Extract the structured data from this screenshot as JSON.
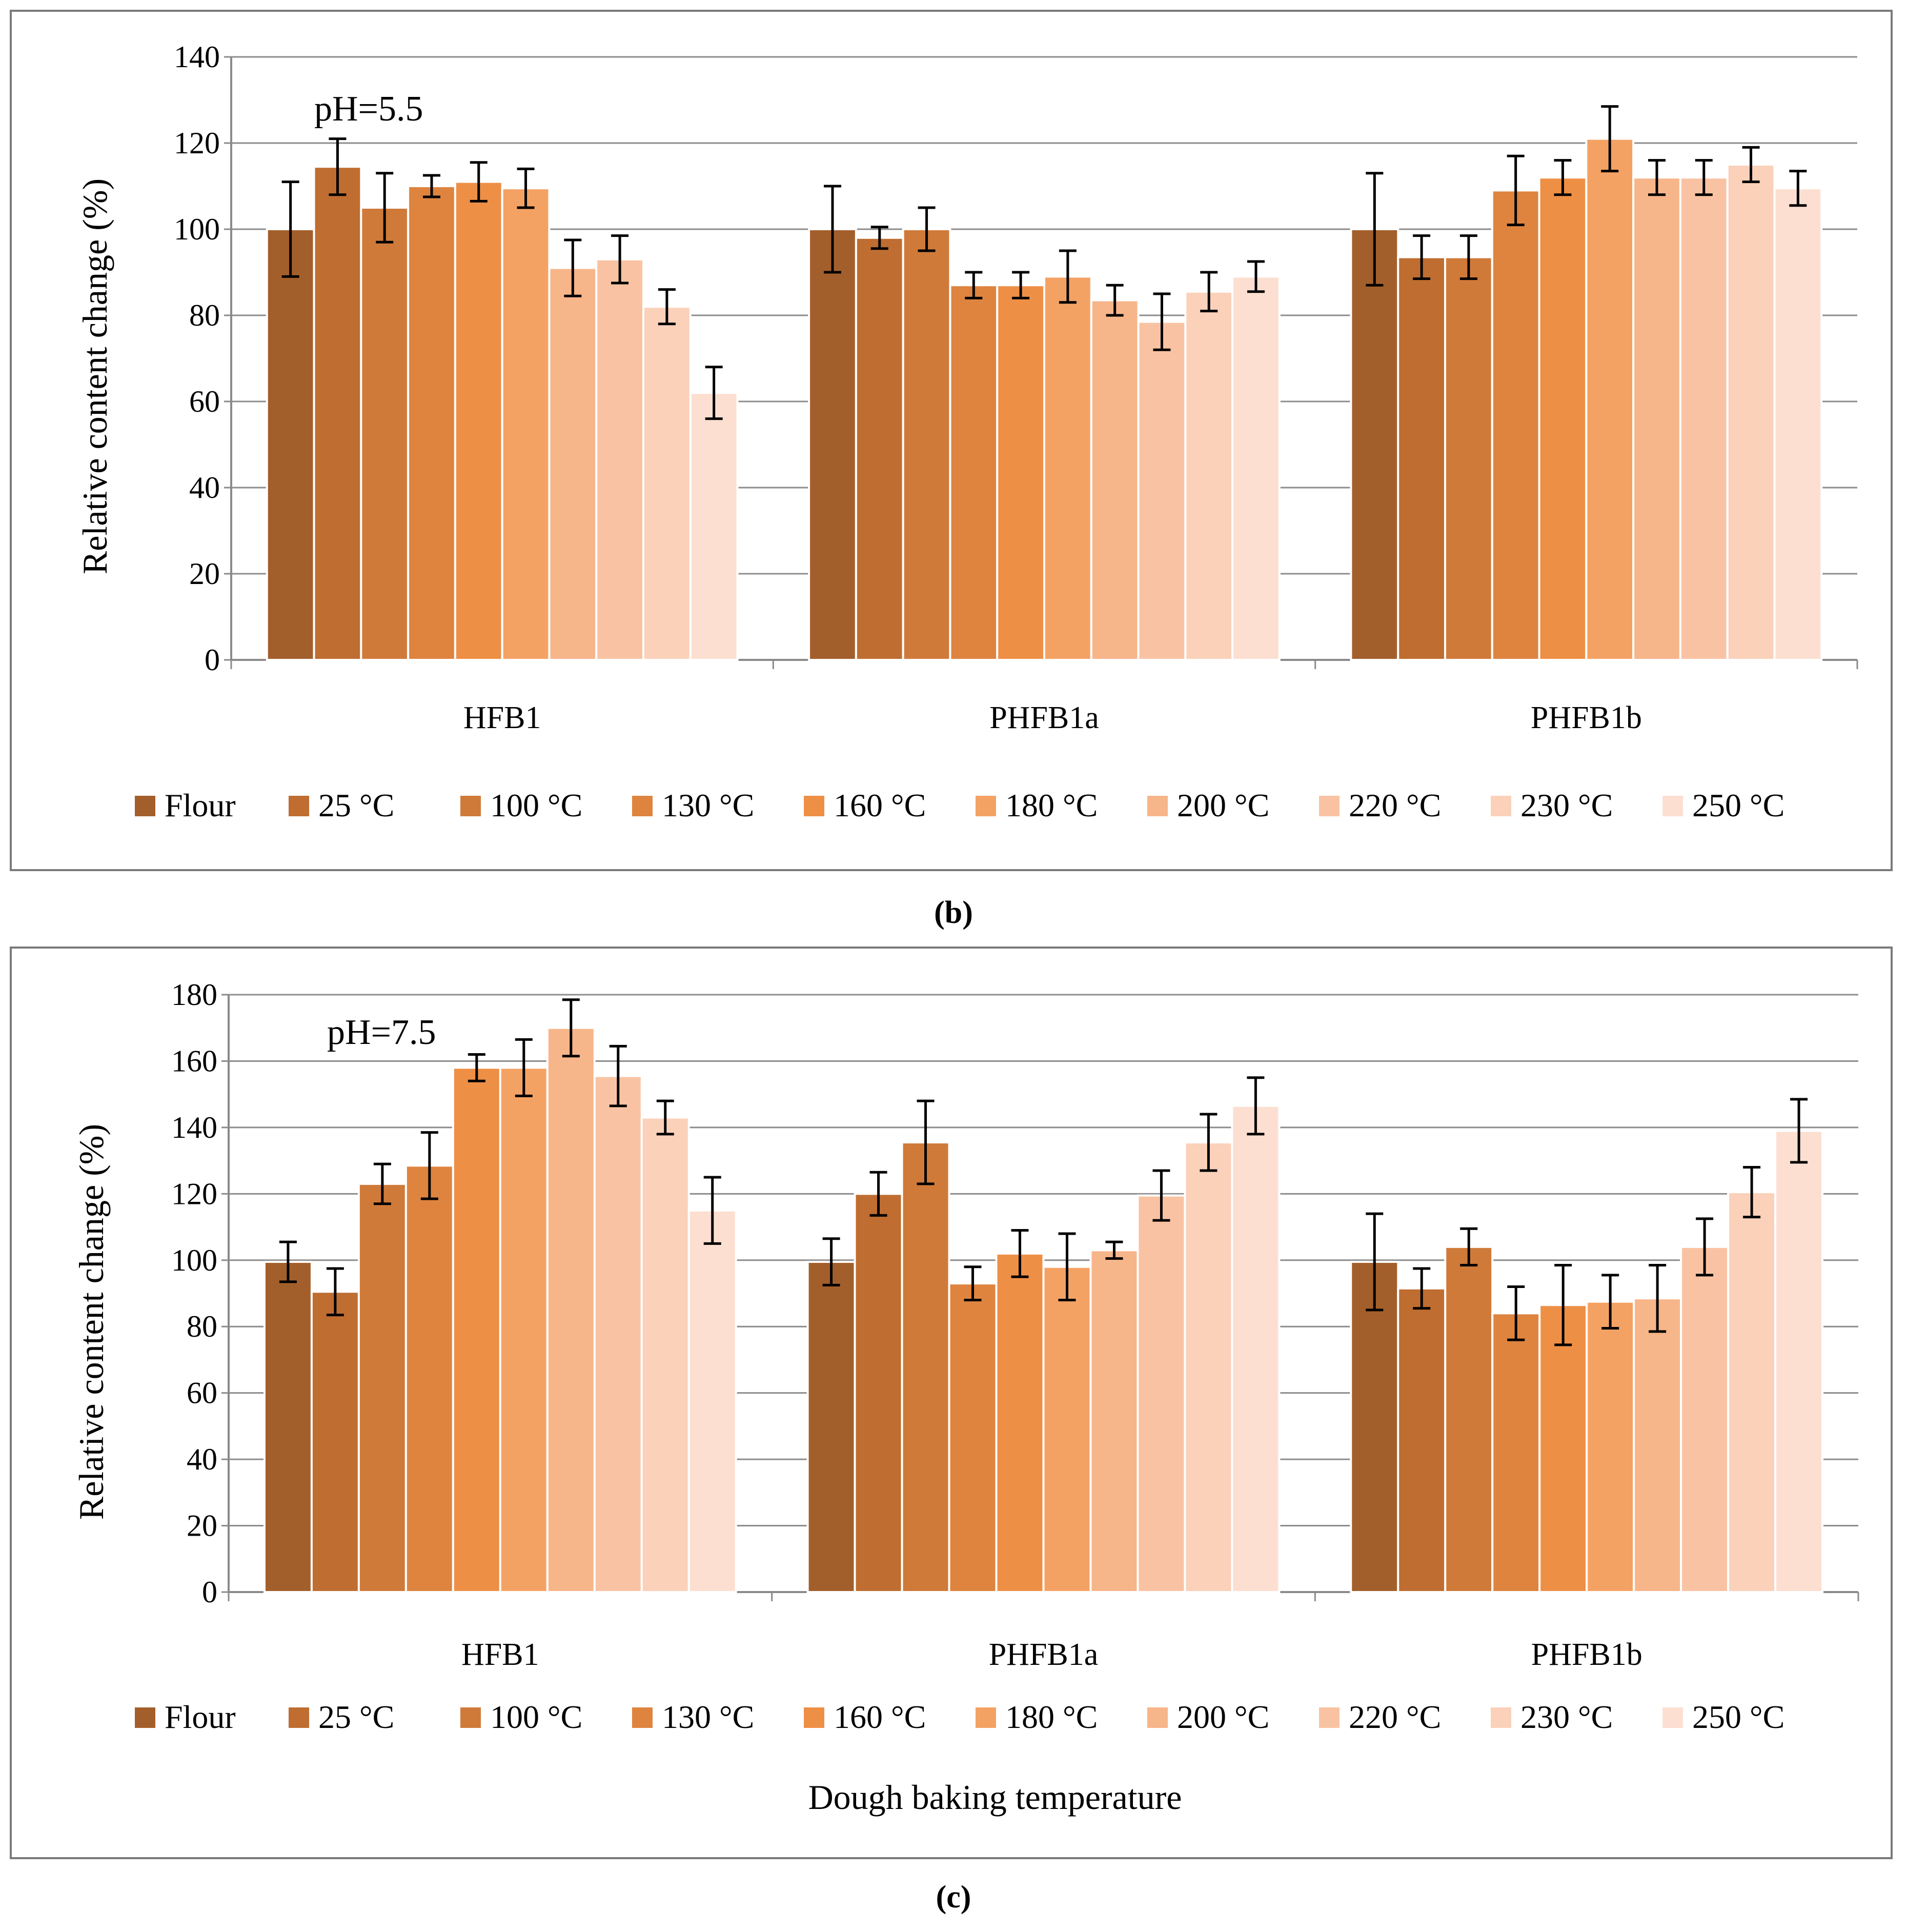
{
  "colors": [
    "#a35f2b",
    "#bf6d31",
    "#d07a3a",
    "#de843f",
    "#ee8f46",
    "#f4a264",
    "#f7b58a",
    "#f9c3a3",
    "#fbd1ba",
    "#fcdfd1"
  ],
  "chart_data": [
    {
      "type": "bar",
      "panel_caption": "(b)",
      "annotation": "pH=5.5",
      "ylabel": "Relative content change (%)",
      "xlabel": "",
      "ylim": [
        0,
        140
      ],
      "yticks": [
        "0",
        "20",
        "40",
        "60",
        "80",
        "100",
        "120",
        "140"
      ],
      "grid": true,
      "legend_position": "bottom",
      "categories": [
        "HFB1",
        "PHFB1a",
        "PHFB1b"
      ],
      "series": [
        {
          "name": "Flour",
          "values": [
            100,
            100,
            100
          ],
          "errors": [
            11,
            10,
            13
          ]
        },
        {
          "name": "25 °C",
          "values": [
            114.5,
            98,
            93.5
          ],
          "errors": [
            6.5,
            2.5,
            5
          ]
        },
        {
          "name": "100 °C",
          "values": [
            105,
            100,
            93.5
          ],
          "errors": [
            8,
            5,
            5
          ]
        },
        {
          "name": "130 °C",
          "values": [
            110,
            87,
            109
          ],
          "errors": [
            2.5,
            3,
            8
          ]
        },
        {
          "name": "160 °C",
          "values": [
            111,
            87,
            112
          ],
          "errors": [
            4.5,
            3,
            4
          ]
        },
        {
          "name": "180 °C",
          "values": [
            109.5,
            89,
            121
          ],
          "errors": [
            4.5,
            6,
            7.5
          ]
        },
        {
          "name": "200 °C",
          "values": [
            91,
            83.5,
            112
          ],
          "errors": [
            6.5,
            3.5,
            4
          ]
        },
        {
          "name": "220 °C",
          "values": [
            93,
            78.5,
            112
          ],
          "errors": [
            5.5,
            6.5,
            4
          ]
        },
        {
          "name": "230 °C",
          "values": [
            82,
            85.5,
            115
          ],
          "errors": [
            4,
            4.5,
            4
          ]
        },
        {
          "name": "250 °C",
          "values": [
            62,
            89,
            109.5
          ],
          "errors": [
            6,
            3.5,
            4
          ]
        }
      ]
    },
    {
      "type": "bar",
      "panel_caption": "(c)",
      "annotation": "pH=7.5",
      "ylabel": "Relative content change (%)",
      "xlabel": "Dough baking temperature",
      "ylim": [
        0,
        180
      ],
      "yticks": [
        "0",
        "20",
        "40",
        "60",
        "80",
        "100",
        "120",
        "140",
        "160",
        "180"
      ],
      "grid": true,
      "legend_position": "bottom",
      "categories": [
        "HFB1",
        "PHFB1a",
        "PHFB1b"
      ],
      "series": [
        {
          "name": "Flour",
          "values": [
            99.5,
            99.5,
            99.5
          ],
          "errors": [
            6,
            7,
            14.5
          ]
        },
        {
          "name": "25 °C",
          "values": [
            90.5,
            120,
            91.5
          ],
          "errors": [
            7,
            6.5,
            6
          ]
        },
        {
          "name": "100 °C",
          "values": [
            123,
            135.5,
            104
          ],
          "errors": [
            6,
            12.5,
            5.5
          ]
        },
        {
          "name": "130 °C",
          "values": [
            128.5,
            93,
            84
          ],
          "errors": [
            10,
            5,
            8
          ]
        },
        {
          "name": "160 °C",
          "values": [
            158,
            102,
            86.5
          ],
          "errors": [
            4,
            7,
            12
          ]
        },
        {
          "name": "180 °C",
          "values": [
            158,
            98,
            87.5
          ],
          "errors": [
            8.5,
            10,
            8
          ]
        },
        {
          "name": "200 °C",
          "values": [
            170,
            103,
            88.5
          ],
          "errors": [
            8.5,
            2.5,
            10
          ]
        },
        {
          "name": "220 °C",
          "values": [
            155.5,
            119.5,
            104
          ],
          "errors": [
            9,
            7.5,
            8.5
          ]
        },
        {
          "name": "230 °C",
          "values": [
            143,
            135.5,
            120.5
          ],
          "errors": [
            5,
            8.5,
            7.5
          ]
        },
        {
          "name": "250 °C",
          "values": [
            115,
            146.5,
            139
          ],
          "errors": [
            10,
            8.5,
            9.5
          ]
        }
      ]
    }
  ]
}
